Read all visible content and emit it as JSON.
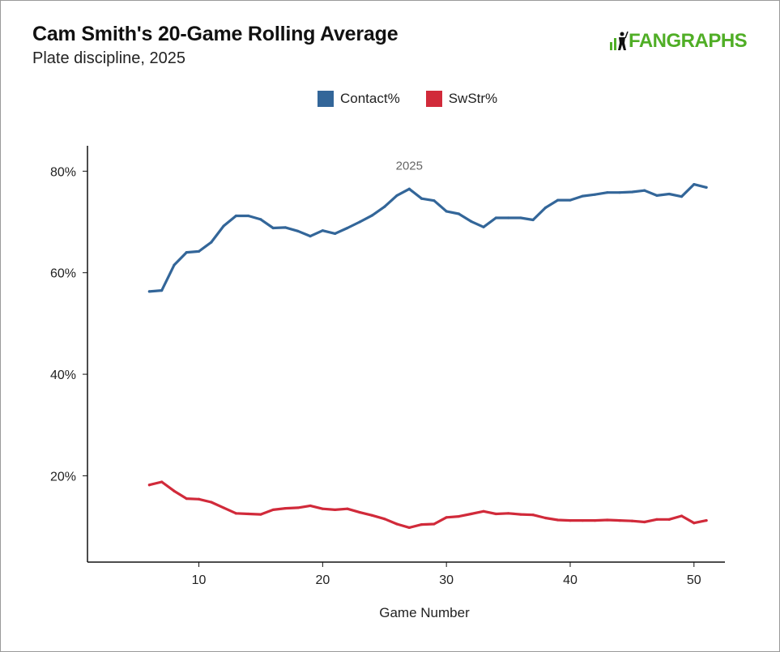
{
  "header": {
    "title": "Cam Smith's 20-Game Rolling Average",
    "subtitle": "Plate discipline, 2025",
    "logo_text": "FANGRAPHS"
  },
  "colors": {
    "contact": "#336699",
    "swstr": "#d12a3a",
    "logo": "#50ae26"
  },
  "chart_data": {
    "type": "line",
    "title": "Cam Smith's 20-Game Rolling Average",
    "subtitle": "Plate discipline, 2025",
    "xlabel": "Game Number",
    "ylabel": "",
    "xlim": [
      1,
      52.5
    ],
    "ylim": [
      3,
      85
    ],
    "xticks": [
      10,
      20,
      30,
      40,
      50
    ],
    "yticks": [
      20,
      40,
      60,
      80
    ],
    "ytick_format": "percent",
    "grid": false,
    "legend_position": "top-center",
    "annotation": {
      "text": "2025",
      "x": 27,
      "y": 80.3
    },
    "x": [
      6,
      7,
      8,
      9,
      10,
      11,
      12,
      13,
      14,
      15,
      16,
      17,
      18,
      19,
      20,
      21,
      22,
      23,
      24,
      25,
      26,
      27,
      28,
      29,
      30,
      31,
      32,
      33,
      34,
      35,
      36,
      37,
      38,
      39,
      40,
      41,
      42,
      43,
      44,
      45,
      46,
      47,
      48,
      49,
      50,
      51
    ],
    "series": [
      {
        "name": "Contact%",
        "color": "#336699",
        "values": [
          56.3,
          56.5,
          61.5,
          64.0,
          64.2,
          66.0,
          69.2,
          71.2,
          71.2,
          70.5,
          68.8,
          68.9,
          68.2,
          67.2,
          68.3,
          67.7,
          68.8,
          70.0,
          71.3,
          73.0,
          75.2,
          76.5,
          74.6,
          74.2,
          72.1,
          71.6,
          70.1,
          69.0,
          70.8,
          70.8,
          70.8,
          70.4,
          72.8,
          74.3,
          74.3,
          75.1,
          75.4,
          75.8,
          75.8,
          75.9,
          76.2,
          75.2,
          75.5,
          75.0,
          77.4,
          76.8
        ]
      },
      {
        "name": "SwStr%",
        "color": "#d12a3a",
        "values": [
          18.2,
          18.8,
          17.0,
          15.5,
          15.4,
          14.8,
          13.7,
          12.6,
          12.5,
          12.4,
          13.3,
          13.6,
          13.7,
          14.1,
          13.5,
          13.3,
          13.5,
          12.8,
          12.2,
          11.5,
          10.5,
          9.8,
          10.4,
          10.5,
          11.8,
          12.0,
          12.5,
          13.0,
          12.5,
          12.6,
          12.4,
          12.3,
          11.7,
          11.3,
          11.2,
          11.2,
          11.2,
          11.3,
          11.2,
          11.1,
          10.9,
          11.4,
          11.4,
          12.1,
          10.7,
          11.2
        ]
      }
    ]
  }
}
